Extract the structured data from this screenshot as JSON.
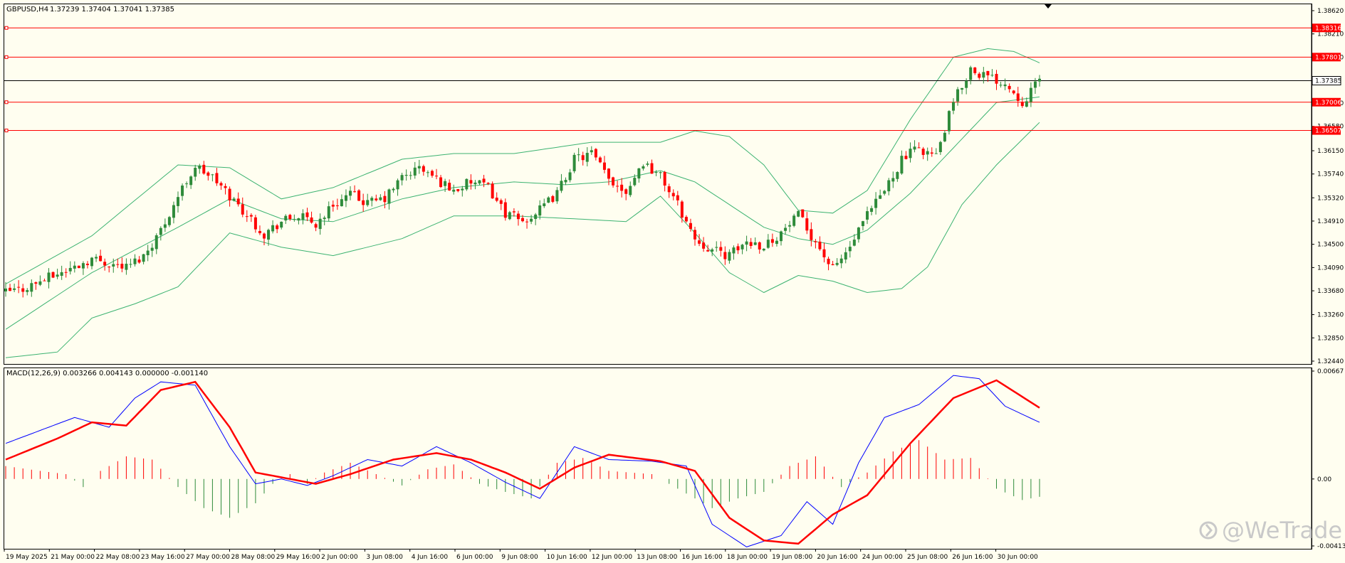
{
  "header": {
    "symbol": "GBPUSD,H4",
    "ohlc": "1.37239 1.37404 1.37041 1.37385"
  },
  "macd_header": {
    "label": "MACD(12,26,9) 0.003266 0.004143 0.000000 -0.001140"
  },
  "watermark": {
    "text": "@WeTrade",
    "logo_icon": "wetrade-logo-icon"
  },
  "colors": {
    "background": "#fffef0",
    "bull": "#2e8b3a",
    "bear": "#ff0000",
    "band": "#3cb371",
    "level": "#ff0000",
    "current": "#000000",
    "macd_line": "#0000ff",
    "signal_line": "#ff0000"
  },
  "chart_data": [
    {
      "type": "candlestick",
      "symbol": "GBPUSD",
      "timeframe": "H4",
      "price_axis": {
        "ticks": [
          "1.38620",
          "1.38210",
          "1.37800",
          "1.37385",
          "1.36990",
          "1.36580",
          "1.36150",
          "1.35740",
          "1.35320",
          "1.34910",
          "1.34500",
          "1.34090",
          "1.33680",
          "1.33260",
          "1.32850",
          "1.32440"
        ],
        "range": [
          1.3244,
          1.3862
        ]
      },
      "time_axis": {
        "labels": [
          "19 May 2025",
          "21 May 00:00",
          "22 May 08:00",
          "23 May 16:00",
          "27 May 00:00",
          "28 May 08:00",
          "29 May 16:00",
          "2 Jun 00:00",
          "3 Jun 08:00",
          "4 Jun 16:00",
          "6 Jun 00:00",
          "9 Jun 08:00",
          "10 Jun 16:00",
          "12 Jun 00:00",
          "13 Jun 08:00",
          "16 Jun 16:00",
          "18 Jun 00:00",
          "19 Jun 08:00",
          "20 Jun 16:00",
          "24 Jun 00:00",
          "25 Jun 08:00",
          "26 Jun 16:00",
          "30 Jun 00:00"
        ]
      },
      "levels": [
        {
          "value": 1.38316,
          "label": "1.38316"
        },
        {
          "value": 1.37801,
          "label": "1.37801"
        },
        {
          "value": 1.37006,
          "label": "1.37006"
        },
        {
          "value": 1.36507,
          "label": "1.36507"
        }
      ],
      "current_price": {
        "value": 1.37385,
        "label": "1.37385"
      },
      "close_path": [
        [
          0,
          1.3365
        ],
        [
          4,
          1.3372
        ],
        [
          8,
          1.3385
        ],
        [
          12,
          1.3398
        ],
        [
          16,
          1.341
        ],
        [
          20,
          1.3425
        ],
        [
          24,
          1.3417
        ],
        [
          28,
          1.341
        ],
        [
          32,
          1.343
        ],
        [
          36,
          1.3475
        ],
        [
          40,
          1.3535
        ],
        [
          44,
          1.3588
        ],
        [
          48,
          1.3568
        ],
        [
          52,
          1.3535
        ],
        [
          56,
          1.3502
        ],
        [
          60,
          1.3468
        ],
        [
          64,
          1.349
        ],
        [
          68,
          1.35
        ],
        [
          72,
          1.3485
        ],
        [
          76,
          1.352
        ],
        [
          80,
          1.3538
        ],
        [
          84,
          1.3522
        ],
        [
          88,
          1.353
        ],
        [
          92,
          1.3568
        ],
        [
          96,
          1.3585
        ],
        [
          100,
          1.3565
        ],
        [
          104,
          1.3545
        ],
        [
          108,
          1.356
        ],
        [
          112,
          1.355
        ],
        [
          116,
          1.3505
        ],
        [
          120,
          1.349
        ],
        [
          124,
          1.351
        ],
        [
          128,
          1.354
        ],
        [
          132,
          1.36
        ],
        [
          136,
          1.361
        ],
        [
          140,
          1.3565
        ],
        [
          144,
          1.3545
        ],
        [
          148,
          1.3595
        ],
        [
          152,
          1.357
        ],
        [
          156,
          1.352
        ],
        [
          160,
          1.346
        ],
        [
          164,
          1.344
        ],
        [
          168,
          1.343
        ],
        [
          172,
          1.3455
        ],
        [
          176,
          1.3448
        ],
        [
          180,
          1.347
        ],
        [
          184,
          1.35
        ],
        [
          188,
          1.3455
        ],
        [
          192,
          1.3405
        ],
        [
          196,
          1.3445
        ],
        [
          200,
          1.35
        ],
        [
          204,
          1.3545
        ],
        [
          208,
          1.36
        ],
        [
          212,
          1.362
        ],
        [
          216,
          1.3605
        ],
        [
          220,
          1.37
        ],
        [
          224,
          1.376
        ],
        [
          228,
          1.3745
        ],
        [
          232,
          1.3735
        ],
        [
          236,
          1.3702
        ],
        [
          240,
          1.3738
        ]
      ],
      "bollinger_bands": {
        "period": 20,
        "upper": [
          [
            0,
            1.338
          ],
          [
            20,
            1.3465
          ],
          [
            40,
            1.359
          ],
          [
            52,
            1.3585
          ],
          [
            64,
            1.353
          ],
          [
            76,
            1.355
          ],
          [
            92,
            1.36
          ],
          [
            104,
            1.361
          ],
          [
            118,
            1.361
          ],
          [
            136,
            1.363
          ],
          [
            152,
            1.363
          ],
          [
            160,
            1.365
          ],
          [
            168,
            1.364
          ],
          [
            176,
            1.359
          ],
          [
            184,
            1.351
          ],
          [
            192,
            1.3505
          ],
          [
            200,
            1.3545
          ],
          [
            210,
            1.367
          ],
          [
            220,
            1.378
          ],
          [
            228,
            1.3795
          ],
          [
            234,
            1.379
          ],
          [
            240,
            1.377
          ]
        ],
        "middle": [
          [
            0,
            1.33
          ],
          [
            20,
            1.34
          ],
          [
            40,
            1.348
          ],
          [
            52,
            1.353
          ],
          [
            64,
            1.3495
          ],
          [
            76,
            1.349
          ],
          [
            92,
            1.353
          ],
          [
            104,
            1.355
          ],
          [
            118,
            1.356
          ],
          [
            130,
            1.3555
          ],
          [
            140,
            1.356
          ],
          [
            152,
            1.358
          ],
          [
            160,
            1.356
          ],
          [
            168,
            1.352
          ],
          [
            176,
            1.348
          ],
          [
            184,
            1.346
          ],
          [
            192,
            1.345
          ],
          [
            200,
            1.3475
          ],
          [
            210,
            1.354
          ],
          [
            220,
            1.362
          ],
          [
            230,
            1.37
          ],
          [
            240,
            1.371
          ]
        ],
        "lower": [
          [
            0,
            1.325
          ],
          [
            12,
            1.326
          ],
          [
            20,
            1.332
          ],
          [
            30,
            1.3345
          ],
          [
            40,
            1.3375
          ],
          [
            52,
            1.347
          ],
          [
            64,
            1.3445
          ],
          [
            76,
            1.343
          ],
          [
            92,
            1.346
          ],
          [
            104,
            1.35
          ],
          [
            118,
            1.35
          ],
          [
            132,
            1.3495
          ],
          [
            144,
            1.349
          ],
          [
            152,
            1.3535
          ],
          [
            160,
            1.347
          ],
          [
            168,
            1.34
          ],
          [
            176,
            1.3365
          ],
          [
            184,
            1.3395
          ],
          [
            192,
            1.3385
          ],
          [
            200,
            1.3365
          ],
          [
            208,
            1.3372
          ],
          [
            214,
            1.341
          ],
          [
            222,
            1.352
          ],
          [
            230,
            1.359
          ],
          [
            240,
            1.3665
          ]
        ]
      }
    },
    {
      "type": "macd",
      "parameters": "MACD(12,26,9)",
      "values": {
        "macd": 0.003266,
        "signal": 0.004143,
        "zero": 0.0,
        "histogram": -0.00114
      },
      "y_axis": {
        "ticks": [
          "0.00667",
          "0.00",
          "-0.004139"
        ],
        "range": [
          -0.004139,
          0.00667
        ]
      },
      "macd_path": [
        [
          0,
          0.0022
        ],
        [
          8,
          0.003
        ],
        [
          16,
          0.0038
        ],
        [
          24,
          0.0032
        ],
        [
          30,
          0.005
        ],
        [
          36,
          0.006
        ],
        [
          44,
          0.0058
        ],
        [
          52,
          0.002
        ],
        [
          58,
          -0.0003
        ],
        [
          64,
          0.0
        ],
        [
          70,
          -0.0004
        ],
        [
          76,
          0.0002
        ],
        [
          84,
          0.0012
        ],
        [
          92,
          0.0008
        ],
        [
          100,
          0.002
        ],
        [
          108,
          0.001
        ],
        [
          116,
          -0.0002
        ],
        [
          124,
          -0.0012
        ],
        [
          132,
          0.002
        ],
        [
          140,
          0.0012
        ],
        [
          150,
          0.0011
        ],
        [
          158,
          0.0008
        ],
        [
          164,
          -0.0028
        ],
        [
          172,
          -0.0042
        ],
        [
          180,
          -0.0035
        ],
        [
          186,
          -0.0014
        ],
        [
          192,
          -0.0028
        ],
        [
          198,
          0.001
        ],
        [
          204,
          0.0038
        ],
        [
          212,
          0.0046
        ],
        [
          220,
          0.0064
        ],
        [
          226,
          0.0062
        ],
        [
          232,
          0.0045
        ],
        [
          240,
          0.0035
        ]
      ],
      "signal_path": [
        [
          0,
          0.0012
        ],
        [
          12,
          0.0025
        ],
        [
          20,
          0.0035
        ],
        [
          28,
          0.0033
        ],
        [
          36,
          0.0055
        ],
        [
          44,
          0.006
        ],
        [
          52,
          0.0032
        ],
        [
          58,
          0.0004
        ],
        [
          64,
          0.0001
        ],
        [
          72,
          -0.0003
        ],
        [
          80,
          0.0003
        ],
        [
          90,
          0.0012
        ],
        [
          100,
          0.0016
        ],
        [
          108,
          0.0012
        ],
        [
          116,
          0.0004
        ],
        [
          124,
          -0.0006
        ],
        [
          132,
          0.0007
        ],
        [
          140,
          0.0015
        ],
        [
          152,
          0.0011
        ],
        [
          160,
          0.0005
        ],
        [
          168,
          -0.0024
        ],
        [
          176,
          -0.0038
        ],
        [
          184,
          -0.004
        ],
        [
          192,
          -0.0022
        ],
        [
          200,
          -0.001
        ],
        [
          210,
          0.0022
        ],
        [
          220,
          0.005
        ],
        [
          230,
          0.0061
        ],
        [
          240,
          0.0044
        ]
      ],
      "histogram_path": [
        [
          0,
          0.0008
        ],
        [
          8,
          0.0005
        ],
        [
          14,
          0.0003
        ],
        [
          18,
          -0.0005
        ],
        [
          22,
          0.0005
        ],
        [
          28,
          0.0014
        ],
        [
          34,
          0.0012
        ],
        [
          40,
          -0.0005
        ],
        [
          46,
          -0.0018
        ],
        [
          52,
          -0.0024
        ],
        [
          58,
          -0.0015
        ],
        [
          62,
          -0.0003
        ],
        [
          66,
          0.0003
        ],
        [
          70,
          -0.0003
        ],
        [
          74,
          0.0004
        ],
        [
          80,
          0.001
        ],
        [
          86,
          0.0003
        ],
        [
          92,
          -0.0004
        ],
        [
          98,
          0.0006
        ],
        [
          104,
          0.0009
        ],
        [
          110,
          -0.0003
        ],
        [
          116,
          -0.0008
        ],
        [
          122,
          -0.0012
        ],
        [
          128,
          0.001
        ],
        [
          134,
          0.0013
        ],
        [
          140,
          0.0005
        ],
        [
          150,
          0.0003
        ],
        [
          158,
          -0.0009
        ],
        [
          164,
          -0.0018
        ],
        [
          170,
          -0.0012
        ],
        [
          176,
          -0.0008
        ],
        [
          182,
          0.0008
        ],
        [
          188,
          0.0014
        ],
        [
          194,
          -0.0005
        ],
        [
          200,
          0.0004
        ],
        [
          206,
          0.0017
        ],
        [
          212,
          0.0024
        ],
        [
          218,
          0.0012
        ],
        [
          224,
          0.0013
        ],
        [
          230,
          -0.0006
        ],
        [
          236,
          -0.0013
        ],
        [
          240,
          -0.0011
        ]
      ]
    }
  ]
}
